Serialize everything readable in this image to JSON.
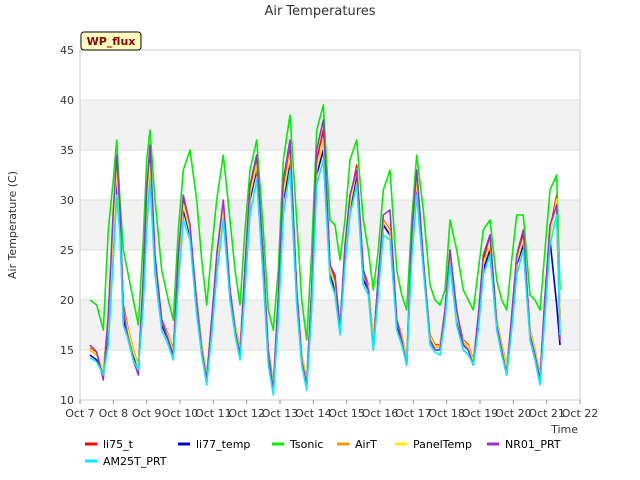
{
  "chart_data": {
    "type": "line",
    "title": "Air Temperatures",
    "xlabel": "Time",
    "ylabel": "Air Temperature (C)",
    "badge": "WP_flux",
    "xlim": [
      7,
      22
    ],
    "ylim": [
      10,
      45
    ],
    "yticks": [
      10,
      15,
      20,
      25,
      30,
      35,
      40,
      45
    ],
    "xticks": [
      {
        "v": 7,
        "label": "Oct 7"
      },
      {
        "v": 8,
        "label": "Oct 8"
      },
      {
        "v": 9,
        "label": "Oct 9"
      },
      {
        "v": 10,
        "label": "Oct 10"
      },
      {
        "v": 11,
        "label": "Oct 11"
      },
      {
        "v": 12,
        "label": "Oct 12"
      },
      {
        "v": 13,
        "label": "Oct 13"
      },
      {
        "v": 14,
        "label": "Oct 14"
      },
      {
        "v": 15,
        "label": "Oct 15"
      },
      {
        "v": 16,
        "label": "Oct 16"
      },
      {
        "v": 17,
        "label": "Oct 17"
      },
      {
        "v": 18,
        "label": "Oct 18"
      },
      {
        "v": 19,
        "label": "Oct 19"
      },
      {
        "v": 20,
        "label": "Oct 20"
      },
      {
        "v": 21,
        "label": "Oct 21"
      },
      {
        "v": 22,
        "label": "Oct 22"
      }
    ],
    "grid": true,
    "background_bands": "#f2f2f2",
    "legend_position": "bottom",
    "x": [
      7.3,
      7.5,
      7.7,
      7.85,
      8.0,
      8.1,
      8.2,
      8.3,
      8.45,
      8.6,
      8.75,
      8.9,
      9.0,
      9.1,
      9.25,
      9.45,
      9.65,
      9.8,
      9.95,
      10.1,
      10.3,
      10.5,
      10.65,
      10.8,
      10.95,
      11.1,
      11.3,
      11.5,
      11.65,
      11.8,
      11.95,
      12.1,
      12.3,
      12.5,
      12.65,
      12.8,
      12.95,
      13.1,
      13.3,
      13.5,
      13.65,
      13.8,
      13.95,
      14.1,
      14.3,
      14.5,
      14.65,
      14.8,
      14.95,
      15.1,
      15.3,
      15.5,
      15.65,
      15.8,
      15.95,
      16.1,
      16.3,
      16.5,
      16.65,
      16.8,
      16.95,
      17.1,
      17.3,
      17.5,
      17.65,
      17.8,
      17.95,
      18.1,
      18.3,
      18.5,
      18.65,
      18.8,
      18.95,
      19.1,
      19.3,
      19.5,
      19.65,
      19.8,
      19.95,
      20.1,
      20.3,
      20.5,
      20.65,
      20.8,
      20.95,
      21.1,
      21.3,
      21.4
    ],
    "series": [
      {
        "name": "li75_t",
        "color": "#ff0000",
        "values": [
          15.2,
          14.6,
          13.0,
          18.0,
          28.0,
          33.5,
          28.0,
          19.5,
          17.0,
          15.0,
          13.5,
          22.0,
          30.0,
          34.0,
          24.0,
          18.0,
          16.5,
          15.0,
          24.0,
          30.0,
          27.0,
          20.0,
          15.5,
          12.5,
          18.0,
          24.0,
          29.5,
          21.0,
          17.5,
          15.0,
          23.0,
          31.0,
          34.0,
          24.0,
          15.0,
          11.5,
          20.0,
          31.0,
          35.0,
          21.0,
          14.5,
          12.0,
          21.0,
          34.0,
          37.0,
          23.5,
          22.0,
          17.5,
          25.0,
          30.0,
          33.5,
          23.0,
          21.5,
          16.0,
          22.0,
          28.0,
          27.0,
          18.0,
          16.5,
          14.0,
          26.0,
          33.0,
          24.0,
          16.5,
          15.5,
          15.5,
          19.0,
          25.0,
          18.5,
          16.0,
          15.5,
          14.0,
          18.0,
          24.0,
          26.5,
          18.0,
          15.5,
          13.5,
          18.0,
          24.0,
          26.5,
          17.0,
          15.0,
          12.5,
          20.0,
          27.0,
          30.5,
          18.5
        ]
      },
      {
        "name": "li77_temp",
        "color": "#0000cc",
        "values": [
          14.5,
          14.0,
          12.5,
          17.0,
          26.0,
          32.0,
          27.0,
          18.0,
          16.5,
          14.5,
          13.0,
          21.0,
          29.0,
          33.0,
          23.0,
          17.5,
          16.0,
          14.5,
          23.0,
          29.0,
          26.5,
          19.0,
          15.0,
          12.0,
          17.5,
          23.5,
          28.5,
          20.5,
          17.0,
          14.5,
          22.5,
          30.0,
          33.0,
          23.0,
          14.0,
          11.0,
          19.5,
          30.0,
          33.5,
          20.0,
          14.0,
          11.5,
          20.0,
          32.5,
          35.0,
          22.5,
          21.0,
          17.0,
          24.5,
          29.0,
          32.5,
          22.0,
          21.0,
          15.5,
          21.5,
          27.5,
          26.5,
          17.5,
          16.0,
          13.5,
          25.0,
          31.5,
          23.5,
          16.0,
          15.0,
          15.0,
          18.5,
          24.0,
          18.0,
          15.5,
          15.0,
          13.5,
          17.5,
          23.0,
          25.0,
          17.5,
          15.0,
          13.0,
          17.5,
          23.5,
          25.5,
          16.5,
          14.5,
          12.0,
          19.5,
          26.0,
          19.5,
          15.5
        ]
      },
      {
        "name": "Tsonic",
        "color": "#00ee00",
        "values": [
          20.0,
          19.5,
          17.0,
          27.0,
          32.0,
          36.0,
          30.0,
          25.0,
          22.5,
          20.0,
          17.5,
          26.0,
          34.0,
          37.0,
          30.0,
          23.0,
          20.0,
          18.0,
          27.0,
          33.0,
          35.0,
          30.0,
          24.0,
          19.5,
          25.0,
          30.0,
          34.5,
          28.0,
          23.0,
          19.5,
          27.0,
          33.0,
          36.0,
          27.0,
          19.0,
          17.0,
          23.0,
          34.0,
          38.5,
          28.0,
          20.0,
          16.0,
          25.0,
          37.0,
          39.5,
          28.0,
          27.5,
          24.0,
          28.0,
          34.0,
          36.0,
          28.0,
          25.0,
          21.0,
          25.0,
          31.0,
          33.0,
          23.0,
          20.5,
          19.0,
          28.0,
          34.5,
          29.0,
          21.5,
          20.0,
          19.5,
          21.0,
          28.0,
          25.0,
          21.0,
          20.0,
          19.0,
          23.0,
          27.0,
          28.0,
          22.0,
          20.0,
          19.0,
          24.0,
          28.5,
          28.5,
          20.5,
          20.0,
          19.0,
          25.0,
          31.0,
          32.5,
          21.0
        ]
      },
      {
        "name": "AirT",
        "color": "#ff9900",
        "values": [
          15.0,
          14.5,
          13.0,
          17.5,
          27.0,
          33.0,
          27.5,
          19.0,
          16.8,
          14.8,
          13.3,
          21.5,
          29.5,
          33.5,
          23.5,
          17.8,
          16.3,
          14.8,
          23.5,
          29.5,
          26.8,
          19.5,
          15.3,
          12.3,
          17.8,
          23.8,
          29.0,
          20.8,
          17.3,
          14.8,
          22.8,
          30.5,
          33.5,
          23.5,
          14.5,
          11.3,
          19.8,
          30.5,
          34.5,
          20.5,
          14.3,
          11.8,
          20.5,
          33.0,
          36.0,
          23.0,
          21.5,
          17.3,
          24.8,
          29.5,
          33.0,
          22.5,
          21.3,
          15.8,
          21.8,
          27.8,
          26.8,
          17.8,
          16.3,
          13.8,
          25.5,
          32.0,
          23.8,
          16.3,
          15.3,
          15.3,
          18.8,
          24.5,
          18.3,
          15.8,
          15.3,
          13.8,
          17.8,
          23.5,
          25.5,
          17.8,
          15.3,
          13.3,
          17.8,
          23.8,
          26.0,
          16.8,
          14.8,
          12.3,
          19.8,
          26.5,
          30.0,
          18.0
        ]
      },
      {
        "name": "PanelTemp",
        "color": "#ffee00",
        "values": [
          15.1,
          14.6,
          13.1,
          17.6,
          27.2,
          33.2,
          27.6,
          19.1,
          16.9,
          14.9,
          13.4,
          21.6,
          29.6,
          33.6,
          23.6,
          17.9,
          16.4,
          14.9,
          23.6,
          29.6,
          26.9,
          19.6,
          15.4,
          12.4,
          17.9,
          23.9,
          29.1,
          20.9,
          17.4,
          14.9,
          22.9,
          30.6,
          33.6,
          23.6,
          14.6,
          11.4,
          19.9,
          30.6,
          34.6,
          20.6,
          14.4,
          11.9,
          20.6,
          33.1,
          36.1,
          23.1,
          21.6,
          17.4,
          24.9,
          29.6,
          33.1,
          22.6,
          21.4,
          15.9,
          21.9,
          27.9,
          26.9,
          17.9,
          16.4,
          13.9,
          25.6,
          32.1,
          23.9,
          16.4,
          15.4,
          15.4,
          18.9,
          24.6,
          18.4,
          15.9,
          15.4,
          13.9,
          17.9,
          23.6,
          25.6,
          17.9,
          15.4,
          13.4,
          17.9,
          23.9,
          26.1,
          16.9,
          14.9,
          12.4,
          19.9,
          26.6,
          30.1,
          18.1
        ]
      },
      {
        "name": "NR01_PRT",
        "color": "#9933cc",
        "values": [
          15.5,
          14.8,
          12.0,
          18.5,
          29.0,
          34.5,
          29.0,
          19.0,
          16.0,
          14.0,
          12.5,
          22.5,
          31.0,
          35.5,
          24.5,
          18.0,
          16.0,
          14.5,
          24.5,
          30.5,
          27.5,
          19.5,
          15.0,
          12.0,
          18.0,
          24.5,
          30.0,
          21.0,
          17.0,
          14.5,
          23.5,
          31.5,
          34.5,
          24.0,
          14.5,
          11.0,
          20.5,
          32.0,
          36.0,
          21.0,
          14.0,
          11.5,
          21.0,
          35.0,
          38.0,
          23.5,
          22.5,
          17.0,
          25.5,
          30.5,
          33.0,
          23.0,
          21.0,
          15.0,
          22.5,
          28.5,
          29.0,
          18.0,
          16.0,
          13.5,
          26.5,
          33.0,
          24.0,
          16.0,
          15.0,
          15.0,
          19.0,
          25.0,
          19.0,
          15.5,
          15.0,
          13.5,
          18.5,
          24.5,
          26.5,
          17.5,
          15.0,
          12.5,
          18.5,
          24.5,
          27.0,
          16.5,
          14.5,
          12.0,
          20.5,
          27.5,
          29.5,
          16.0
        ]
      },
      {
        "name": "AM25T_PRT",
        "color": "#00eeff",
        "values": [
          14.2,
          13.8,
          12.5,
          15.5,
          24.0,
          30.5,
          26.5,
          17.5,
          16.0,
          14.0,
          13.0,
          19.5,
          27.0,
          32.0,
          22.5,
          17.0,
          15.5,
          14.0,
          21.5,
          28.0,
          26.0,
          18.5,
          14.5,
          11.5,
          16.5,
          22.5,
          28.0,
          20.0,
          16.5,
          14.0,
          21.0,
          28.5,
          32.0,
          22.0,
          13.5,
          10.5,
          18.0,
          28.5,
          33.0,
          19.5,
          13.5,
          11.0,
          19.0,
          31.5,
          34.0,
          22.0,
          20.5,
          16.5,
          23.5,
          28.5,
          31.5,
          21.5,
          20.5,
          15.0,
          20.5,
          26.5,
          26.0,
          17.0,
          15.5,
          13.5,
          24.0,
          30.5,
          23.0,
          15.5,
          14.8,
          14.5,
          18.0,
          23.5,
          17.5,
          15.0,
          14.5,
          13.5,
          17.0,
          22.5,
          24.5,
          17.0,
          14.5,
          12.5,
          17.0,
          22.5,
          25.0,
          16.0,
          14.0,
          11.5,
          18.5,
          25.5,
          28.5,
          16.5
        ]
      }
    ]
  }
}
